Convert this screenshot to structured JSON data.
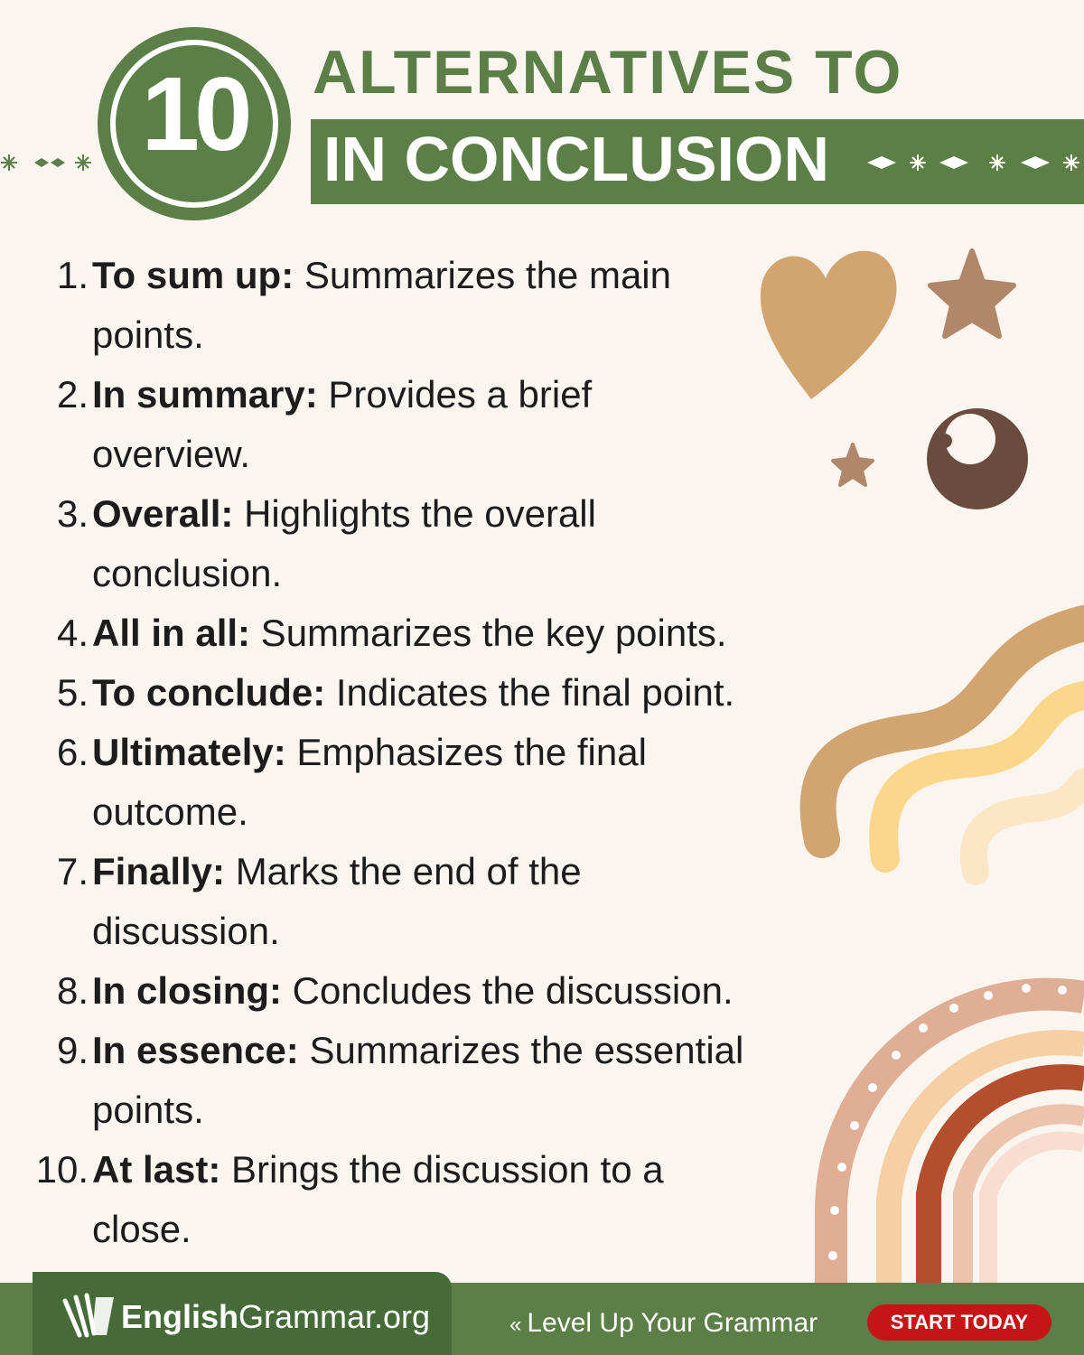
{
  "header": {
    "badge_number": "10",
    "title_line1": "ALTERNATIVES TO",
    "title_line2": "IN CONCLUSION"
  },
  "items": [
    {
      "num": "1.",
      "term": "To sum up:",
      "desc": " Summarizes the main",
      "cont": "points."
    },
    {
      "num": "2.",
      "term": "In summary:",
      "desc": " Provides a brief",
      "cont": "overview."
    },
    {
      "num": "3.",
      "term": "Overall:",
      "desc": " Highlights the overall",
      "cont": "conclusion."
    },
    {
      "num": "4.",
      "term": "All in all:",
      "desc": " Summarizes the key points.",
      "cont": ""
    },
    {
      "num": "5.",
      "term": "To conclude:",
      "desc": " Indicates the final point.",
      "cont": ""
    },
    {
      "num": "6.",
      "term": "Ultimately:",
      "desc": " Emphasizes the final",
      "cont": "outcome."
    },
    {
      "num": "7.",
      "term": "Finally:",
      "desc": " Marks the end of the",
      "cont": "discussion."
    },
    {
      "num": "8.",
      "term": "In closing:",
      "desc": " Concludes the discussion.",
      "cont": ""
    },
    {
      "num": "9.",
      "term": "In essence:",
      "desc": " Summarizes the essential",
      "cont": "points."
    },
    {
      "num": "10.",
      "term": "At last:",
      "desc": " Brings the discussion to a",
      "cont": "close."
    }
  ],
  "footer": {
    "brand_bold": "English",
    "brand_rest": "Grammar.org",
    "tagline": "Level Up Your Grammar",
    "chevron": "«",
    "cta": "START TODAY"
  },
  "icons": [
    "heart-shape",
    "star-shape",
    "moon-shape",
    "wave-stripes",
    "rainbow",
    "snowflake-icon",
    "diamond-icon",
    "book-logo-icon"
  ],
  "colors": {
    "brand_green": "#5b7f47",
    "background": "#faf6ef",
    "cta_red": "#c71416",
    "heart": "#d2a46f",
    "star": "#b1876a",
    "moon": "#6a4c3f"
  }
}
